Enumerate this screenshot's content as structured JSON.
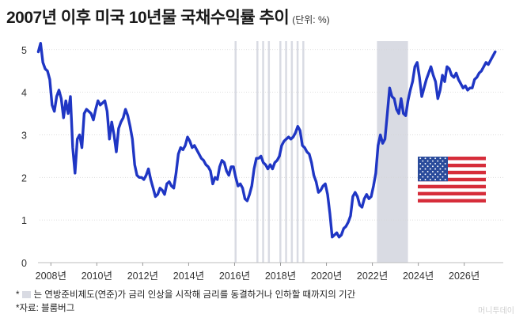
{
  "title": "2007년 이후 미국 10년물 국채수익률 추이",
  "unit": "(단위: %)",
  "footnotes": {
    "star1": "*",
    "note1": "는 연방준비제도(연준)가 금리 인상을 시작해 금리를 동결하거나 인하할 때까지의 기간",
    "note2": "*자료: 블룸버그"
  },
  "watermark": "머니투데이",
  "colors": {
    "line": "#1f36c4",
    "shade": "#d9dbe3",
    "grid": "#d6d6d6"
  },
  "flag_icon": "us-flag-icon",
  "chart_data": {
    "type": "line",
    "title": "2007년 이후 미국 10년물 국채수익률 추이",
    "ylabel": "",
    "xlabel": "",
    "xlim": [
      2007.3,
      2027.7
    ],
    "ylim": [
      0,
      5.2
    ],
    "grid": true,
    "ytick_values": [
      0,
      1,
      2,
      3,
      4,
      5
    ],
    "yticks": [
      "0",
      "1",
      "2",
      "3",
      "4",
      "5"
    ],
    "xtick_values": [
      2008,
      2010,
      2012,
      2014,
      2016,
      2018,
      2020,
      2022,
      2024,
      2026
    ],
    "xticks": [
      "2008년",
      "2010년",
      "2012년",
      "2014년",
      "2016년",
      "2018년",
      "2020년",
      "2022년",
      "2024년",
      "2026년"
    ],
    "shaded_periods": [
      {
        "start": 2016.0,
        "end": 2016.05
      },
      {
        "start": 2016.95,
        "end": 2017.0
      },
      {
        "start": 2017.2,
        "end": 2017.25
      },
      {
        "start": 2017.45,
        "end": 2017.5
      },
      {
        "start": 2017.95,
        "end": 2018.0
      },
      {
        "start": 2018.2,
        "end": 2018.25
      },
      {
        "start": 2018.45,
        "end": 2018.5
      },
      {
        "start": 2018.7,
        "end": 2018.75
      },
      {
        "start": 2018.95,
        "end": 2019.0
      },
      {
        "start": 2022.2,
        "end": 2023.55
      }
    ],
    "series": [
      {
        "name": "",
        "x": [
          2007.45,
          2007.55,
          2007.65,
          2007.75,
          2007.85,
          2007.95,
          2008.05,
          2008.15,
          2008.25,
          2008.35,
          2008.45,
          2008.55,
          2008.65,
          2008.75,
          2008.85,
          2008.95,
          2009.05,
          2009.15,
          2009.25,
          2009.35,
          2009.45,
          2009.55,
          2009.65,
          2009.75,
          2009.85,
          2009.95,
          2010.05,
          2010.15,
          2010.25,
          2010.35,
          2010.45,
          2010.55,
          2010.65,
          2010.75,
          2010.85,
          2010.95,
          2011.05,
          2011.15,
          2011.25,
          2011.35,
          2011.45,
          2011.55,
          2011.65,
          2011.75,
          2011.85,
          2011.95,
          2012.05,
          2012.15,
          2012.25,
          2012.35,
          2012.45,
          2012.55,
          2012.65,
          2012.75,
          2012.85,
          2012.95,
          2013.05,
          2013.15,
          2013.25,
          2013.35,
          2013.45,
          2013.55,
          2013.65,
          2013.75,
          2013.85,
          2013.95,
          2014.05,
          2014.15,
          2014.25,
          2014.35,
          2014.45,
          2014.55,
          2014.65,
          2014.75,
          2014.85,
          2014.95,
          2015.05,
          2015.15,
          2015.25,
          2015.35,
          2015.45,
          2015.55,
          2015.65,
          2015.75,
          2015.85,
          2015.95,
          2016.05,
          2016.15,
          2016.25,
          2016.35,
          2016.45,
          2016.55,
          2016.65,
          2016.75,
          2016.85,
          2016.95,
          2017.05,
          2017.15,
          2017.25,
          2017.35,
          2017.45,
          2017.55,
          2017.65,
          2017.75,
          2017.85,
          2017.95,
          2018.05,
          2018.15,
          2018.25,
          2018.35,
          2018.45,
          2018.55,
          2018.65,
          2018.75,
          2018.85,
          2018.95,
          2019.05,
          2019.15,
          2019.25,
          2019.35,
          2019.45,
          2019.55,
          2019.65,
          2019.75,
          2019.85,
          2019.95,
          2020.05,
          2020.15,
          2020.25,
          2020.35,
          2020.45,
          2020.55,
          2020.65,
          2020.75,
          2020.85,
          2020.95,
          2021.05,
          2021.15,
          2021.25,
          2021.35,
          2021.45,
          2021.55,
          2021.65,
          2021.75,
          2021.85,
          2021.95,
          2022.05,
          2022.15,
          2022.25,
          2022.35,
          2022.45,
          2022.55,
          2022.65,
          2022.75,
          2022.85,
          2022.95,
          2023.05,
          2023.15,
          2023.25,
          2023.35,
          2023.45,
          2023.55,
          2023.65,
          2023.75,
          2023.85,
          2023.95,
          2024.05,
          2024.15,
          2024.25,
          2024.35,
          2024.45,
          2024.55,
          2024.65,
          2024.75,
          2024.85,
          2024.95,
          2025.05,
          2025.15,
          2025.25,
          2025.35,
          2025.45,
          2025.55,
          2025.65,
          2025.75,
          2025.85,
          2025.95,
          2026.05,
          2026.15,
          2026.25,
          2026.35,
          2026.45,
          2026.55,
          2026.65,
          2026.75,
          2026.85,
          2026.95,
          2027.05,
          2027.15,
          2027.25,
          2027.35
        ],
        "values": [
          4.95,
          5.15,
          4.7,
          4.55,
          4.5,
          4.3,
          3.7,
          3.55,
          3.9,
          4.05,
          3.85,
          3.4,
          3.8,
          3.5,
          3.9,
          2.7,
          2.1,
          2.9,
          3.0,
          2.7,
          3.5,
          3.6,
          3.55,
          3.5,
          3.35,
          3.6,
          3.8,
          3.7,
          3.75,
          3.8,
          3.55,
          2.9,
          3.3,
          3.0,
          2.6,
          3.15,
          3.3,
          3.4,
          3.6,
          3.45,
          3.2,
          2.9,
          2.3,
          2.05,
          2.0,
          2.0,
          1.95,
          2.05,
          2.2,
          1.95,
          1.75,
          1.55,
          1.6,
          1.75,
          1.7,
          1.6,
          1.85,
          1.9,
          1.8,
          1.75,
          2.1,
          2.55,
          2.7,
          2.65,
          2.75,
          2.95,
          2.85,
          2.7,
          2.75,
          2.65,
          2.55,
          2.45,
          2.4,
          2.3,
          2.25,
          2.15,
          1.85,
          2.0,
          1.95,
          2.25,
          2.4,
          2.35,
          2.15,
          2.05,
          2.25,
          2.25,
          2.0,
          1.8,
          1.85,
          1.75,
          1.5,
          1.45,
          1.6,
          1.8,
          2.2,
          2.45,
          2.45,
          2.5,
          2.35,
          2.3,
          2.2,
          2.3,
          2.2,
          2.35,
          2.4,
          2.5,
          2.75,
          2.85,
          2.9,
          2.95,
          2.9,
          2.95,
          3.05,
          3.2,
          3.1,
          2.75,
          2.7,
          2.6,
          2.55,
          2.35,
          2.05,
          1.9,
          1.65,
          1.7,
          1.8,
          1.85,
          1.6,
          1.15,
          0.6,
          0.65,
          0.7,
          0.6,
          0.65,
          0.8,
          0.85,
          0.95,
          1.1,
          1.55,
          1.65,
          1.55,
          1.35,
          1.3,
          1.5,
          1.6,
          1.5,
          1.55,
          1.8,
          2.1,
          2.75,
          3.0,
          2.8,
          2.9,
          3.5,
          4.1,
          3.9,
          3.85,
          3.6,
          3.5,
          3.85,
          3.5,
          3.45,
          3.8,
          4.05,
          4.25,
          4.6,
          4.7,
          4.35,
          3.9,
          4.1,
          4.3,
          4.45,
          4.6,
          4.4,
          4.25,
          3.85,
          4.05,
          4.4,
          4.25,
          4.6,
          4.55,
          4.4,
          4.35,
          4.45,
          4.3,
          4.2,
          4.1,
          4.15,
          4.05,
          4.1,
          4.1,
          4.3,
          4.35,
          4.45,
          4.5,
          4.6,
          4.7,
          4.65,
          4.75,
          4.85,
          4.95
        ]
      }
    ]
  }
}
